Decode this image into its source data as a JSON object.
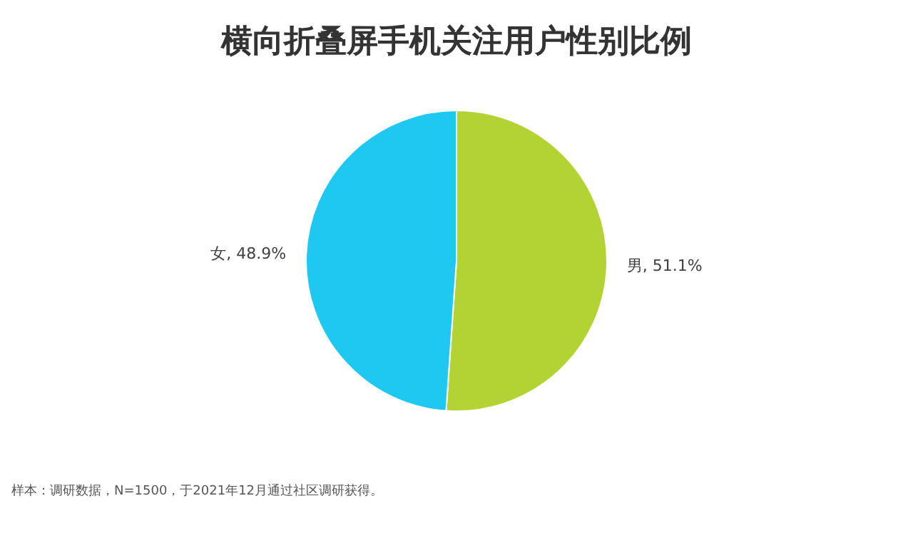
{
  "chart_data": {
    "type": "pie",
    "title": "横向折叠屏手机关注用户性别比例",
    "categories": [
      "男",
      "女"
    ],
    "values": [
      51.1,
      48.9
    ],
    "value_labels": [
      "51.1%",
      "48.9%"
    ],
    "colors": [
      "#b3d334",
      "#1ec8f0"
    ],
    "legend": false,
    "annotations": [
      "样本：调研数据，N=1500，于2021年12月通过社区调研获得。"
    ]
  }
}
